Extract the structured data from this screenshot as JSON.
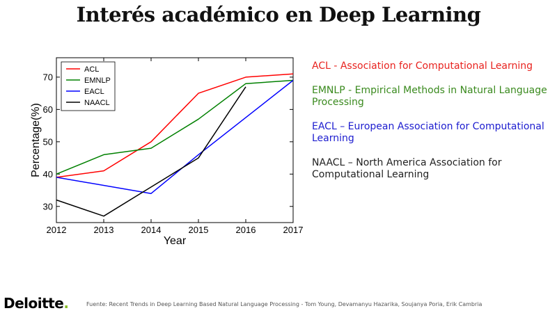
{
  "title": "Interés académico en Deep Learning",
  "descriptions": [
    {
      "text": "ACL - Association for Computational Learning",
      "color": "#e8231f"
    },
    {
      "text": "EMNLP - Empirical Methods in Natural Language Processing",
      "color": "#3a8a1e"
    },
    {
      "text": "EACL – European Association for Computational Learning",
      "color": "#1c1ccf"
    },
    {
      "text": "NAACL – North America Association for Computational Learning",
      "color": "#222222"
    }
  ],
  "brand": {
    "name": "Deloitte",
    "dot": "."
  },
  "source": "Fuente: Recent Trends in Deep Learning Based Natural Language Processing - Tom Young, Devamanyu Hazarika, Soujanya Poria, Erik Cambria",
  "chart_data": {
    "type": "line",
    "title": "",
    "xlabel": "Year",
    "ylabel": "Percentage(%)",
    "xlim": [
      2012,
      2017
    ],
    "ylim": [
      25,
      76
    ],
    "xticks": [
      2012,
      2013,
      2014,
      2015,
      2016,
      2017
    ],
    "yticks": [
      30,
      40,
      50,
      60,
      70
    ],
    "grid": false,
    "legend_position": "top-left",
    "series": [
      {
        "name": "ACL",
        "color": "#ff0000",
        "x": [
          2012,
          2013,
          2014,
          2015,
          2016,
          2017
        ],
        "values": [
          39,
          41,
          50,
          65,
          70,
          71
        ]
      },
      {
        "name": "EMNLP",
        "color": "#008000",
        "x": [
          2012,
          2013,
          2014,
          2015,
          2016,
          2017
        ],
        "values": [
          40,
          46,
          48,
          57,
          68,
          69
        ]
      },
      {
        "name": "EACL",
        "color": "#0000ff",
        "x": [
          2012,
          2014,
          2015,
          2017
        ],
        "values": [
          39,
          34,
          46,
          69
        ]
      },
      {
        "name": "NAACL",
        "color": "#000000",
        "x": [
          2012,
          2013,
          2014,
          2015,
          2016
        ],
        "values": [
          32,
          27,
          36,
          45,
          67
        ]
      }
    ]
  }
}
